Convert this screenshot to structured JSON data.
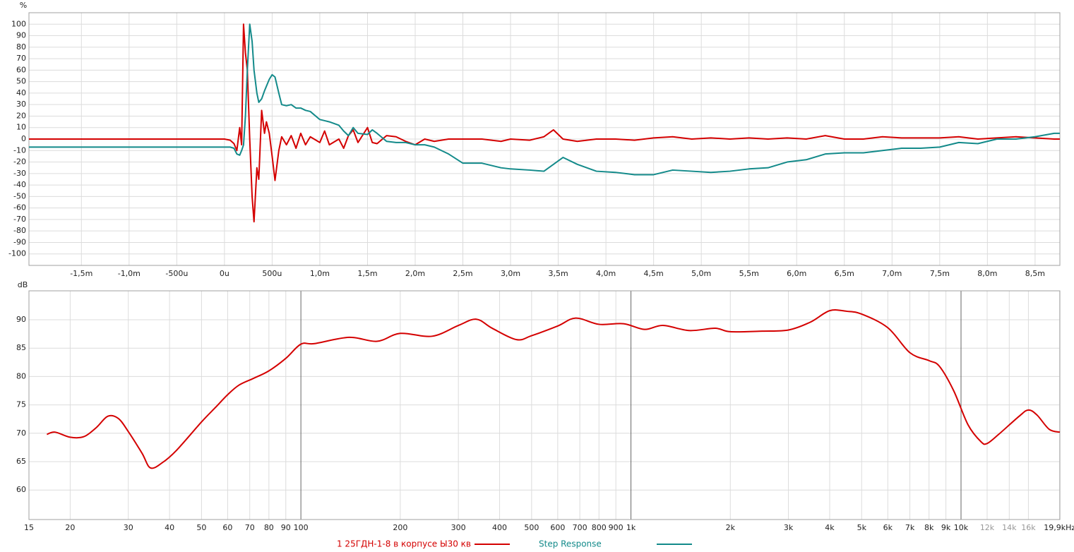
{
  "chart_data": [
    {
      "type": "line",
      "y_label": "%",
      "x": [
        -2.05,
        -1.5,
        -1.0,
        -0.5,
        -0.2,
        0.0,
        0.06,
        0.1,
        0.13,
        0.16,
        0.18,
        0.2,
        0.22,
        0.24,
        0.265,
        0.29,
        0.31,
        0.34,
        0.36,
        0.39,
        0.42,
        0.44,
        0.47,
        0.5,
        0.53,
        0.57,
        0.6,
        0.65,
        0.7,
        0.75,
        0.8,
        0.85,
        0.9,
        1.0,
        1.05,
        1.1,
        1.2,
        1.25,
        1.3,
        1.35,
        1.4,
        1.5,
        1.55,
        1.6,
        1.7,
        1.8,
        1.9,
        2.0,
        2.1,
        2.2,
        2.35,
        2.5,
        2.7,
        2.9,
        3.0,
        3.2,
        3.35,
        3.45,
        3.55,
        3.7,
        3.9,
        4.1,
        4.3,
        4.5,
        4.7,
        4.9,
        5.1,
        5.3,
        5.5,
        5.7,
        5.9,
        6.1,
        6.3,
        6.5,
        6.7,
        6.9,
        7.1,
        7.3,
        7.5,
        7.7,
        7.9,
        8.1,
        8.3,
        8.5,
        8.7,
        8.76
      ],
      "series": [
        {
          "name": "1 25ГДН-1-8 в корпусе Ы30 кв",
          "color": "#d40000",
          "values": [
            0,
            0,
            0,
            0,
            0,
            0,
            -1,
            -4,
            -10,
            10,
            -5,
            100,
            75,
            60,
            0,
            -50,
            -72,
            -25,
            -35,
            25,
            5,
            15,
            5,
            -15,
            -36,
            -10,
            2,
            -5,
            3,
            -8,
            5,
            -5,
            2,
            -3,
            7,
            -5,
            0,
            -8,
            3,
            8,
            -3,
            10,
            -3,
            -4,
            3,
            2,
            -2,
            -5,
            0,
            -2,
            0,
            0,
            0,
            -2,
            0,
            -1,
            2,
            8,
            0,
            -2,
            0,
            0,
            -1,
            1,
            2,
            0,
            1,
            0,
            1,
            0,
            1,
            0,
            3,
            0,
            0,
            2,
            1,
            1,
            1,
            2,
            0,
            1,
            2,
            1,
            0,
            0
          ]
        },
        {
          "name": "Step Response",
          "color": "#138a8a",
          "values": [
            -7,
            -7,
            -7,
            -7,
            -7,
            -7,
            -7,
            -8,
            -13,
            -14,
            -10,
            -5,
            20,
            60,
            100,
            85,
            60,
            40,
            32,
            35,
            42,
            46,
            52,
            56,
            54,
            40,
            30,
            29,
            30,
            27,
            27,
            25,
            24,
            17,
            16,
            15,
            12,
            7,
            3,
            10,
            5,
            4,
            8,
            5,
            -2,
            -3,
            -3,
            -5,
            -5,
            -7,
            -13,
            -21,
            -21,
            -25,
            -26,
            -27,
            -28,
            -22,
            -16,
            -22,
            -28,
            -29,
            -31,
            -31,
            -27,
            -28,
            -29,
            -28,
            -26,
            -25,
            -20,
            -18,
            -13,
            -12,
            -12,
            -10,
            -8,
            -8,
            -7,
            -3,
            -4,
            0,
            0,
            2,
            5,
            5
          ]
        }
      ],
      "xlim": [
        -2.05,
        8.76
      ],
      "ylim": [
        -110,
        110
      ],
      "xticks": [
        {
          "value": -1.5,
          "label": "-1,5m"
        },
        {
          "value": -1.0,
          "label": "-1,0m"
        },
        {
          "value": -0.5,
          "label": "-500u"
        },
        {
          "value": 0,
          "label": "0u"
        },
        {
          "value": 0.5,
          "label": "500u"
        },
        {
          "value": 1.0,
          "label": "1,0m"
        },
        {
          "value": 1.5,
          "label": "1,5m"
        },
        {
          "value": 2.0,
          "label": "2,0m"
        },
        {
          "value": 2.5,
          "label": "2,5m"
        },
        {
          "value": 3.0,
          "label": "3,0m"
        },
        {
          "value": 3.5,
          "label": "3,5m"
        },
        {
          "value": 4.0,
          "label": "4,0m"
        },
        {
          "value": 4.5,
          "label": "4,5m"
        },
        {
          "value": 5.0,
          "label": "5,0m"
        },
        {
          "value": 5.5,
          "label": "5,5m"
        },
        {
          "value": 6.0,
          "label": "6,0m"
        },
        {
          "value": 6.5,
          "label": "6,5m"
        },
        {
          "value": 7.0,
          "label": "7,0m"
        },
        {
          "value": 7.5,
          "label": "7,5m"
        },
        {
          "value": 8.0,
          "label": "8,0m"
        },
        {
          "value": 8.5,
          "label": "8,5m"
        }
      ],
      "yticks": [
        -100,
        -90,
        -80,
        -70,
        -60,
        -50,
        -40,
        -30,
        -20,
        -10,
        0,
        10,
        20,
        30,
        40,
        50,
        60,
        70,
        80,
        90,
        100
      ],
      "grid": true
    },
    {
      "type": "line",
      "y_label": "dB",
      "log_x": true,
      "x": [
        17,
        18,
        20,
        22,
        24,
        26,
        28,
        30,
        33,
        35,
        38,
        42,
        50,
        55,
        60,
        65,
        72,
        80,
        90,
        100,
        110,
        140,
        170,
        200,
        250,
        300,
        340,
        380,
        450,
        500,
        600,
        680,
        800,
        950,
        1100,
        1250,
        1500,
        1800,
        2000,
        2500,
        3000,
        3500,
        4000,
        4500,
        5000,
        6000,
        7000,
        8000,
        8600,
        9500,
        10500,
        11500,
        12000,
        13000,
        15000,
        16000,
        17000,
        18500,
        19930
      ],
      "series": [
        {
          "color": "#d40000",
          "values": [
            69.8,
            70.2,
            69.3,
            69.4,
            71.0,
            73.0,
            72.6,
            70.3,
            66.5,
            63.9,
            64.8,
            67.0,
            72.0,
            74.5,
            76.8,
            78.5,
            79.7,
            81.0,
            83.2,
            85.7,
            85.8,
            86.9,
            86.2,
            87.6,
            87.1,
            89.0,
            90.1,
            88.5,
            86.5,
            87.2,
            88.9,
            90.3,
            89.2,
            89.3,
            88.3,
            89.0,
            88.1,
            88.5,
            87.9,
            88.0,
            88.2,
            89.6,
            91.6,
            91.5,
            91.0,
            88.6,
            84.2,
            82.8,
            81.8,
            77.5,
            71.5,
            68.5,
            68.2,
            69.8,
            73.0,
            74.1,
            73.2,
            70.7,
            70.2
          ]
        }
      ],
      "xlim": [
        15,
        19930
      ],
      "ylim": [
        54.8,
        95.1
      ],
      "xticks": [
        15,
        20,
        30,
        40,
        50,
        60,
        70,
        80,
        90,
        100,
        200,
        300,
        400,
        500,
        600,
        700,
        800,
        900,
        {
          "value": 1000,
          "label": "1k"
        },
        {
          "value": 2000,
          "label": "2k"
        },
        {
          "value": 3000,
          "label": "3k"
        },
        {
          "value": 4000,
          "label": "4k"
        },
        {
          "value": 5000,
          "label": "5k"
        },
        {
          "value": 6000,
          "label": "6k"
        },
        {
          "value": 7000,
          "label": "7k"
        },
        {
          "value": 8000,
          "label": "8k"
        },
        {
          "value": 9000,
          "label": "9k"
        },
        {
          "value": 10000,
          "label": "10k"
        },
        {
          "value": 12000,
          "label": "12k"
        },
        {
          "value": 14000,
          "label": "14k"
        },
        {
          "value": 16000,
          "label": "16k"
        },
        {
          "value": 19900,
          "label": "19,9kHz"
        }
      ],
      "yticks": [
        60,
        65,
        70,
        75,
        80,
        85,
        90
      ],
      "grid": true
    }
  ]
}
